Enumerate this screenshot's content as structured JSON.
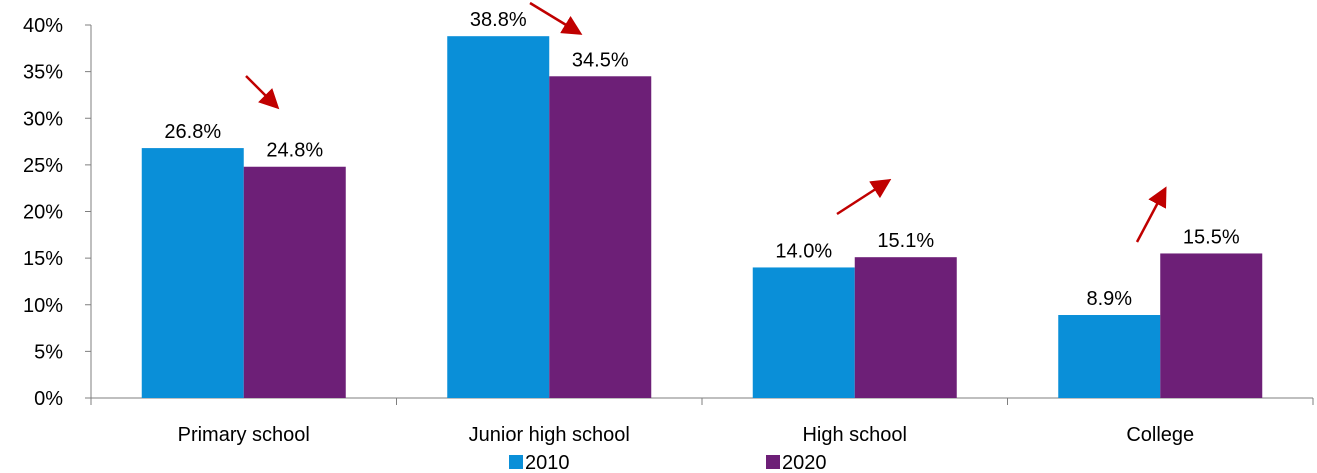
{
  "chart_data": {
    "type": "bar",
    "categories": [
      "Primary school",
      "Junior high school",
      "High school",
      "College"
    ],
    "series": [
      {
        "name": "2010",
        "color": "#0a8fd8",
        "values": [
          26.8,
          38.8,
          14.0,
          8.9
        ],
        "labels": [
          "26.8%",
          "38.8%",
          "14.0%",
          "8.9%"
        ]
      },
      {
        "name": "2020",
        "color": "#6d1f77",
        "values": [
          24.8,
          34.5,
          15.1,
          15.5
        ],
        "labels": [
          "24.8%",
          "34.5%",
          "15.1%",
          "15.5%"
        ]
      }
    ],
    "ylim": [
      0,
      40
    ],
    "yticks": [
      0,
      5,
      10,
      15,
      20,
      25,
      30,
      35,
      40
    ],
    "ytick_labels": [
      "0%",
      "5%",
      "10%",
      "15%",
      "20%",
      "25%",
      "30%",
      "35%",
      "40%"
    ],
    "legend_position": "bottom",
    "grid": false,
    "trend_arrows": [
      {
        "category": "Primary school",
        "direction": "down"
      },
      {
        "category": "Junior high school",
        "direction": "down"
      },
      {
        "category": "High school",
        "direction": "up"
      },
      {
        "category": "College",
        "direction": "up"
      }
    ],
    "arrow_color": "#c00000"
  }
}
